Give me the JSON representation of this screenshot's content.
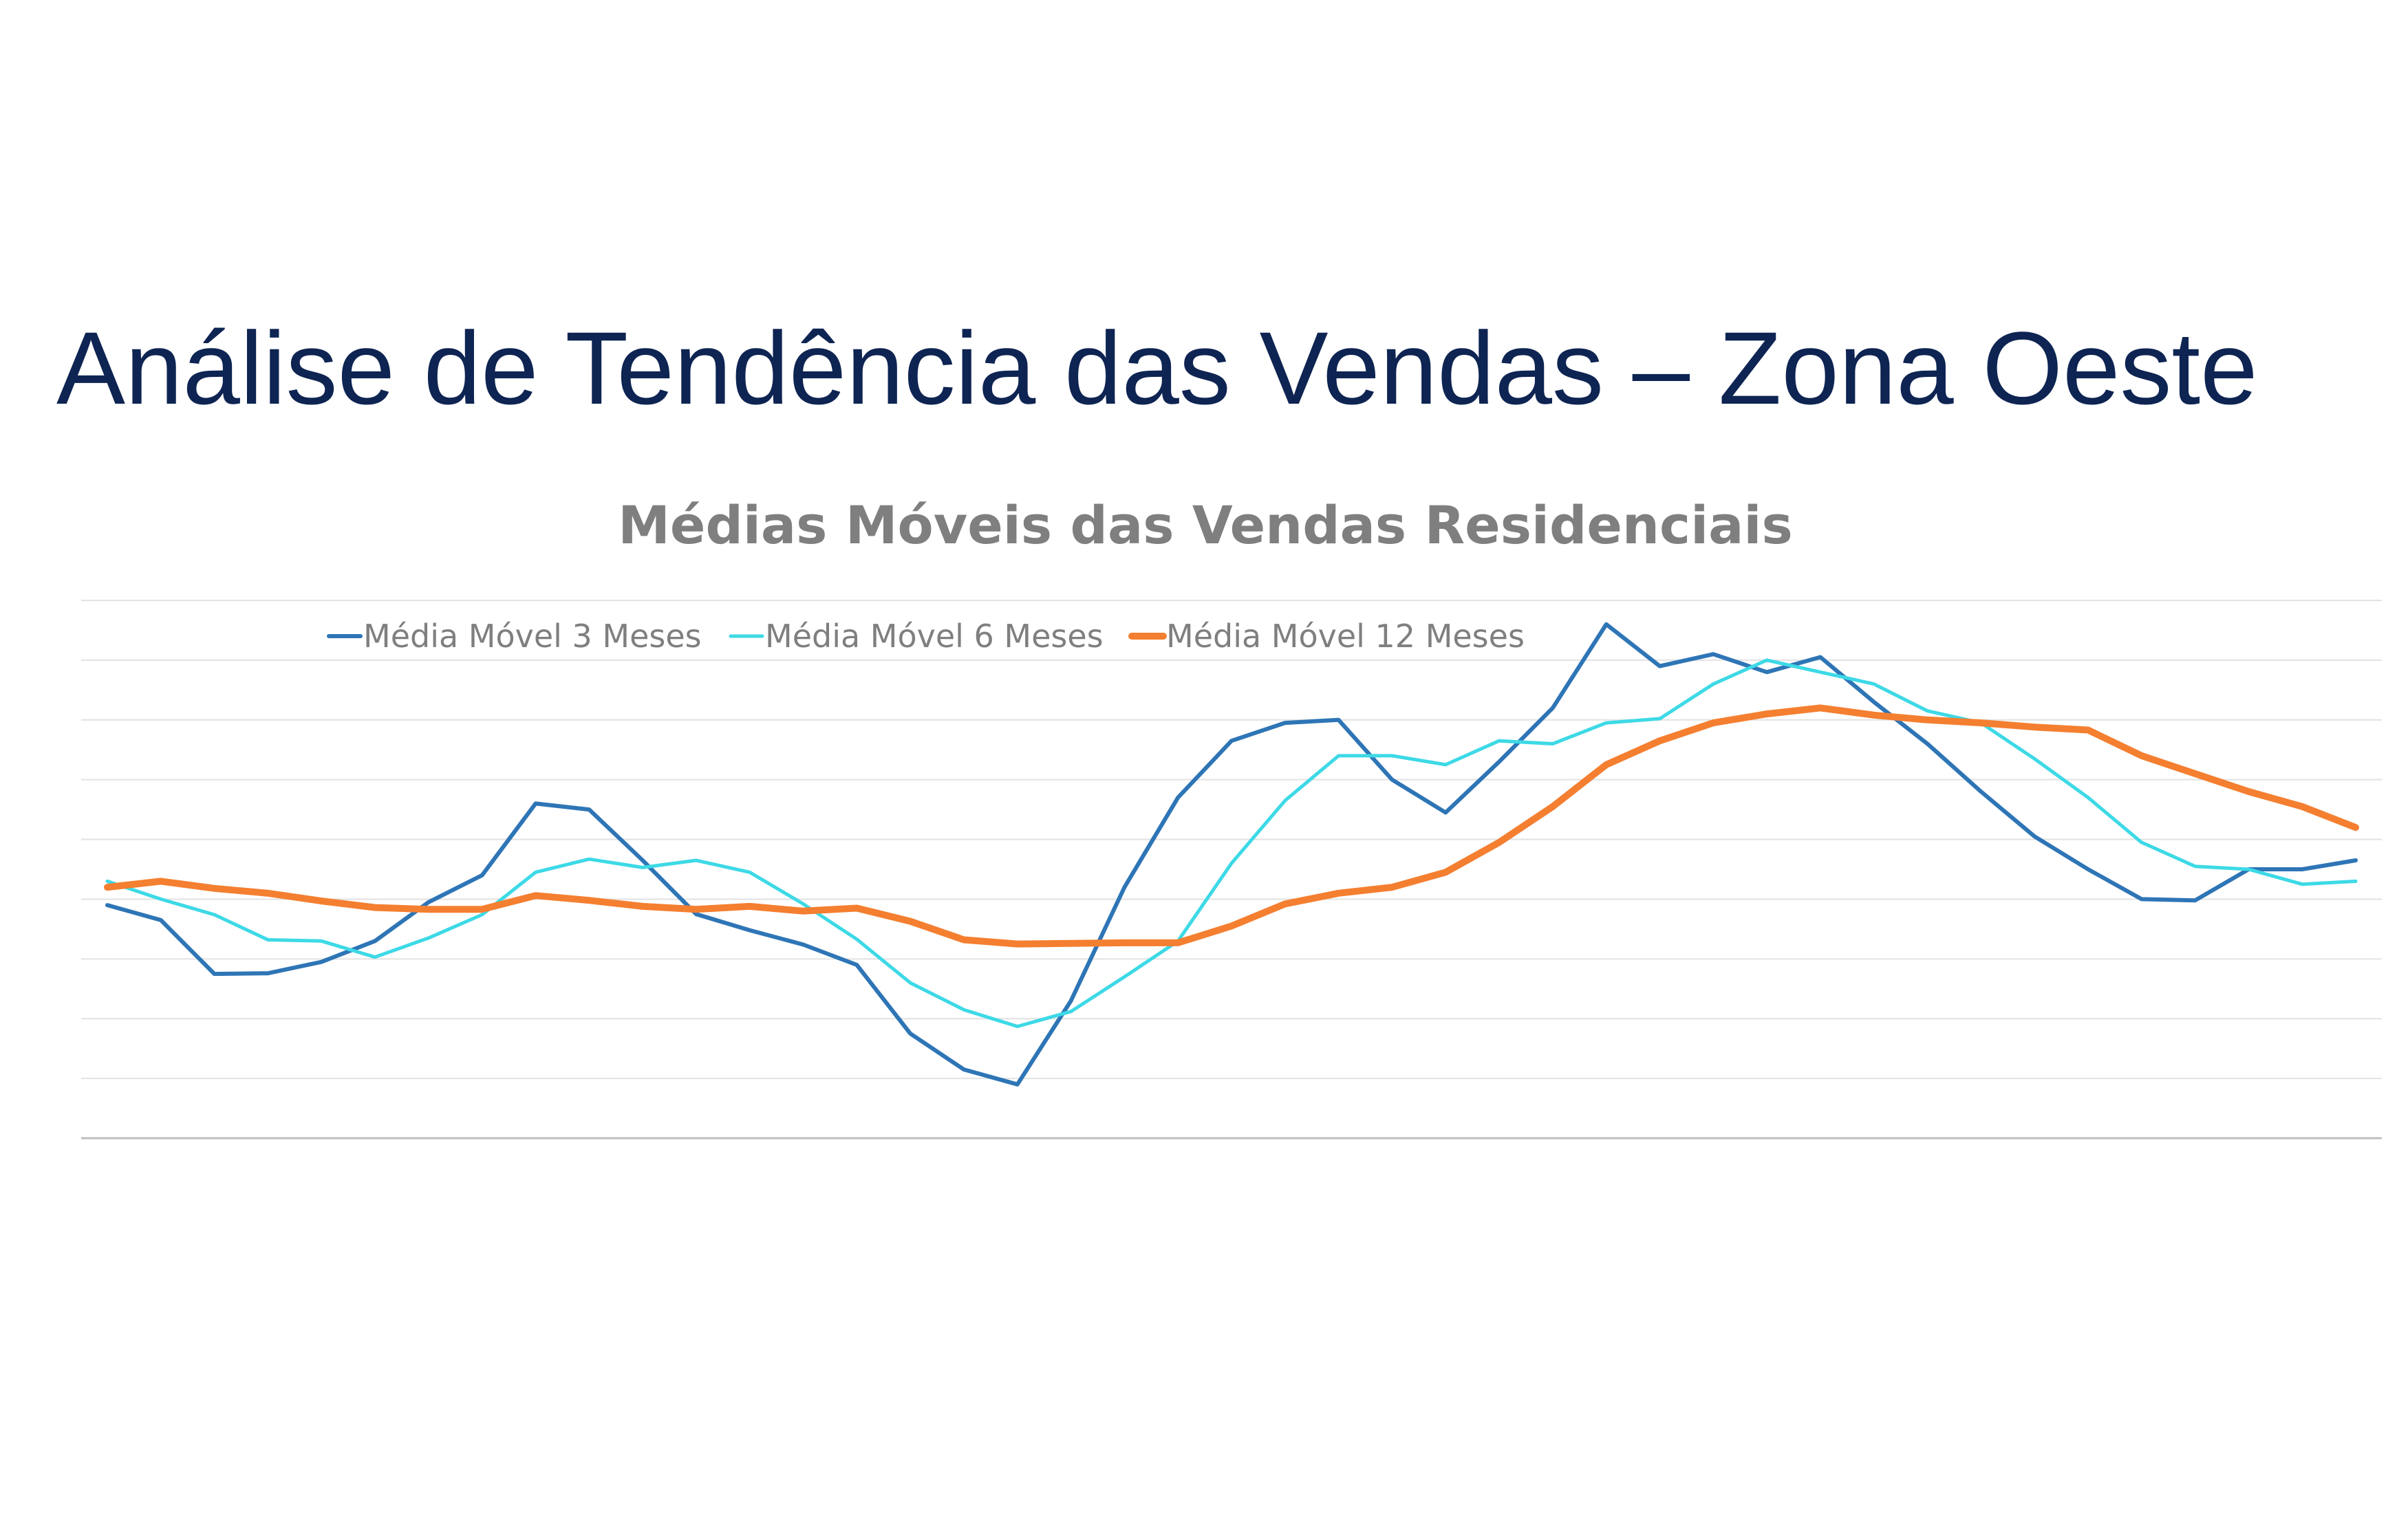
{
  "slide": {
    "title": "Análise de Tendência das Vendas – Zona Oeste"
  },
  "chart_data": {
    "type": "line",
    "title": "Médias Móveis das Vendas Residenciais",
    "xlabel": "",
    "ylabel": "",
    "ylim": [
      0,
      9
    ],
    "gridlines": true,
    "axis_labels_visible": false,
    "legend_position": "top",
    "x": [
      1,
      2,
      3,
      4,
      5,
      6,
      7,
      8,
      9,
      10,
      11,
      12,
      13,
      14,
      15,
      16,
      17,
      18,
      19,
      20,
      21,
      22,
      23,
      24,
      25,
      26,
      27,
      28,
      29,
      30,
      31,
      32,
      33,
      34,
      35,
      36,
      37,
      38,
      39,
      40,
      41,
      42,
      43
    ],
    "series": [
      {
        "name": "Média Móvel 3 Meses",
        "color": "#2e75b6",
        "line_width": 6,
        "values": [
          3.9,
          3.65,
          2.75,
          2.76,
          2.95,
          3.3,
          3.95,
          4.4,
          5.6,
          5.5,
          4.65,
          3.75,
          3.48,
          3.24,
          2.9,
          1.75,
          1.15,
          0.9,
          2.3,
          4.2,
          5.7,
          6.65,
          6.95,
          7.0,
          6.0,
          5.45,
          6.3,
          7.2,
          8.6,
          7.9,
          8.1,
          7.8,
          8.05,
          7.3,
          6.6,
          5.8,
          5.05,
          4.5,
          4.0,
          3.98,
          4.5,
          4.5,
          4.65
        ]
      },
      {
        "name": "Média Móvel 6 Meses",
        "color": "#3dd9e6",
        "line_width": 5,
        "values": [
          4.3,
          4.0,
          3.74,
          3.32,
          3.3,
          3.03,
          3.35,
          3.74,
          4.45,
          4.67,
          4.53,
          4.65,
          4.45,
          3.92,
          3.33,
          2.6,
          2.15,
          1.87,
          2.12,
          2.7,
          3.3,
          4.6,
          5.65,
          6.4,
          6.4,
          6.25,
          6.65,
          6.6,
          6.95,
          7.02,
          7.6,
          8.0,
          7.8,
          7.6,
          7.15,
          6.95,
          6.35,
          5.7,
          4.95,
          4.55,
          4.5,
          4.25,
          4.3
        ]
      },
      {
        "name": "Média Móvel 12 Meses",
        "color": "#f47f30",
        "line_width": 10,
        "values": [
          4.2,
          4.3,
          4.18,
          4.1,
          3.97,
          3.86,
          3.83,
          3.83,
          4.06,
          3.98,
          3.88,
          3.83,
          3.88,
          3.8,
          3.85,
          3.63,
          3.32,
          3.25,
          3.26,
          3.27,
          3.27,
          3.55,
          3.92,
          4.1,
          4.2,
          4.45,
          4.95,
          5.55,
          6.25,
          6.65,
          6.95,
          7.1,
          7.2,
          7.08,
          7.0,
          6.95,
          6.88,
          6.83,
          6.4,
          6.1,
          5.8,
          5.55,
          5.2
        ]
      }
    ]
  }
}
